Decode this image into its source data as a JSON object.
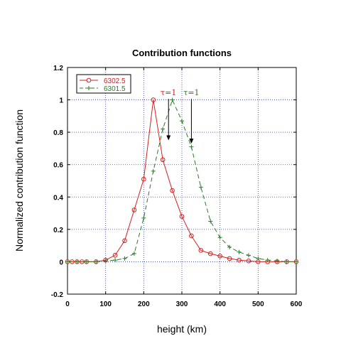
{
  "chart_data": {
    "type": "line",
    "title": "Contribution functions",
    "xlabel": "height (km)",
    "ylabel": "Normalized contribution function",
    "xlim": [
      0,
      600
    ],
    "ylim": [
      -0.2,
      1.2
    ],
    "x_ticks": [
      "0",
      "100",
      "200",
      "300",
      "400",
      "500",
      "600"
    ],
    "y_ticks": [
      "-0.2",
      "0",
      "0.2",
      "0.4",
      "0.6",
      "0.8",
      "1",
      "1.2"
    ],
    "grid": true,
    "legend_position": "top-left",
    "series": [
      {
        "name": "6302.5",
        "color": "#d42020",
        "line_style": "solid",
        "marker": "circle",
        "x": [
          0,
          12,
          25,
          38,
          50,
          75,
          100,
          125,
          150,
          175,
          200,
          225,
          250,
          275,
          300,
          325,
          350,
          375,
          400,
          425,
          450,
          475,
          500,
          525,
          550,
          575,
          600
        ],
        "y": [
          0.0,
          0.0,
          0.0,
          0.0,
          0.0,
          0.0,
          0.01,
          0.04,
          0.13,
          0.32,
          0.51,
          1.0,
          0.63,
          0.44,
          0.28,
          0.16,
          0.07,
          0.05,
          0.035,
          0.02,
          0.01,
          0.005,
          0.0,
          0.0,
          0.0,
          0.0,
          0.0
        ]
      },
      {
        "name": "6301.5",
        "color": "#2a7a2a",
        "line_style": "dashed",
        "marker": "plus",
        "x": [
          0,
          25,
          50,
          75,
          100,
          125,
          150,
          175,
          200,
          225,
          250,
          275,
          300,
          325,
          350,
          375,
          400,
          425,
          450,
          475,
          500,
          525,
          550,
          575,
          600
        ],
        "y": [
          0.0,
          0.0,
          0.0,
          0.0,
          0.005,
          0.01,
          0.02,
          0.05,
          0.27,
          0.56,
          0.82,
          1.0,
          0.87,
          0.71,
          0.46,
          0.25,
          0.15,
          0.09,
          0.06,
          0.04,
          0.02,
          0.01,
          0.005,
          0.0,
          0.0
        ]
      }
    ],
    "annotations": [
      {
        "text": "τ=1",
        "x": 265,
        "y": 0.75,
        "color": "#d42020"
      },
      {
        "text": "τ=1",
        "x": 325,
        "y": 0.73,
        "color": "#2a7a2a"
      }
    ]
  }
}
